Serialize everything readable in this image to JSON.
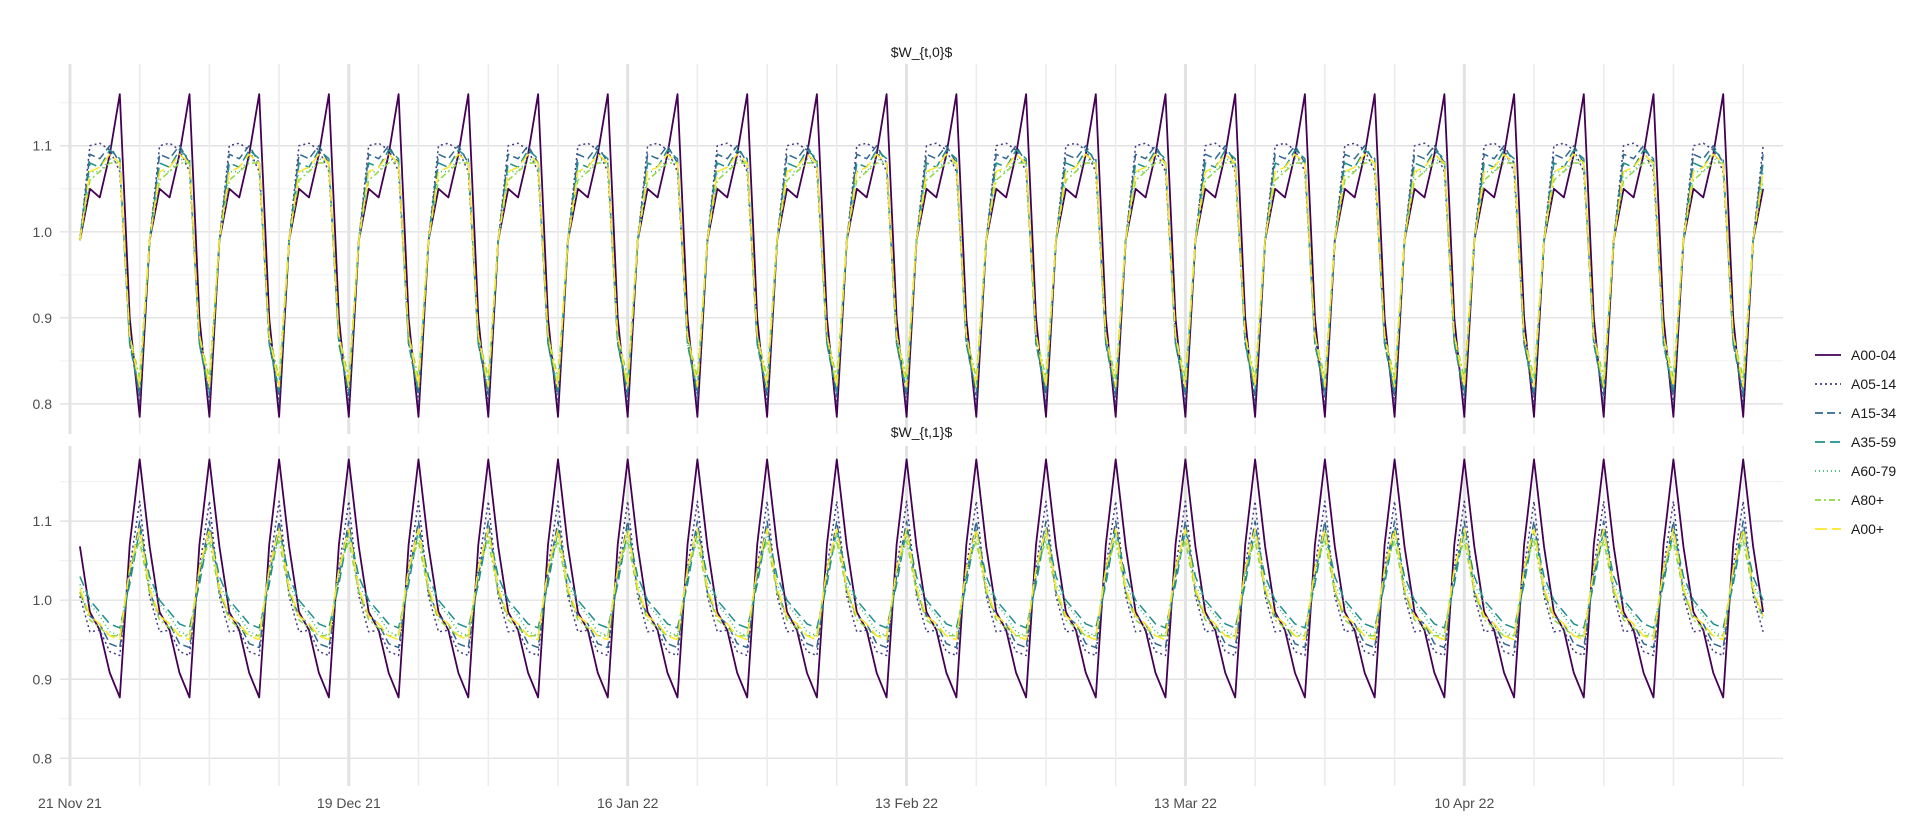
{
  "chart_data": {
    "type": "line",
    "x_axis": {
      "type": "date",
      "tick_labels": [
        "21 Nov 21",
        "19 Dec 21",
        "16 Jan 22",
        "13 Feb 22",
        "13 Mar 22",
        "10 Apr 22"
      ],
      "tick_dates": [
        "2021-11-21",
        "2021-12-19",
        "2022-01-16",
        "2022-02-13",
        "2022-03-13",
        "2022-04-10"
      ],
      "range": [
        "2021-11-20",
        "2022-05-12"
      ]
    },
    "y_axis": {
      "ticks": [
        0.8,
        0.9,
        1.0,
        1.1
      ],
      "range": [
        0.765,
        1.195
      ]
    },
    "grid": true,
    "legend": {
      "placement": "right"
    },
    "data_start": "2021-11-22",
    "data_end": "2022-05-10",
    "period_days": 7,
    "series": [
      {
        "name": "A00-04",
        "color": "#440154",
        "dash": "",
        "panel_0_weekly": [
          0.99,
          1.05,
          1.04,
          1.09,
          1.16,
          0.9,
          0.785
        ],
        "panel_1_weekly": [
          1.068,
          0.985,
          0.962,
          0.908,
          0.877,
          1.07,
          1.178
        ]
      },
      {
        "name": "A05-14",
        "color": "#443A83",
        "dash": "2,3",
        "panel_0_weekly": [
          0.99,
          1.1,
          1.103,
          1.095,
          1.07,
          0.88,
          0.8
        ],
        "panel_1_weekly": [
          1.005,
          0.96,
          0.962,
          0.935,
          0.93,
          1.04,
          1.125
        ]
      },
      {
        "name": "A15-34",
        "color": "#31688E",
        "dash": "8,4",
        "panel_0_weekly": [
          0.99,
          1.09,
          1.085,
          1.1,
          1.08,
          0.87,
          0.81
        ],
        "panel_1_weekly": [
          1.01,
          0.98,
          0.97,
          0.945,
          0.94,
          1.03,
          1.1
        ]
      },
      {
        "name": "A35-59",
        "color": "#21908C",
        "dash": "10,5",
        "panel_0_weekly": [
          0.99,
          1.08,
          1.075,
          1.095,
          1.085,
          0.87,
          0.815
        ],
        "panel_1_weekly": [
          1.03,
          1.0,
          0.985,
          0.97,
          0.965,
          1.02,
          1.09
        ]
      },
      {
        "name": "A60-79",
        "color": "#35B779",
        "dash": "1,3",
        "panel_0_weekly": [
          0.99,
          1.07,
          1.07,
          1.085,
          1.08,
          0.87,
          0.82
        ],
        "panel_1_weekly": [
          1.02,
          0.995,
          0.98,
          0.96,
          0.955,
          1.03,
          1.085
        ]
      },
      {
        "name": "A80+",
        "color": "#8FD744",
        "dash": "6,3,2,3",
        "panel_0_weekly": [
          0.99,
          1.06,
          1.07,
          1.08,
          1.08,
          0.88,
          0.83
        ],
        "panel_1_weekly": [
          1.01,
          0.975,
          0.965,
          0.955,
          0.955,
          1.04,
          1.075
        ]
      },
      {
        "name": "A00+",
        "color": "#FDE725",
        "dash": "12,5",
        "panel_0_weekly": [
          0.99,
          1.07,
          1.075,
          1.09,
          1.08,
          0.88,
          0.82
        ],
        "panel_1_weekly": [
          1.015,
          0.98,
          0.97,
          0.955,
          0.95,
          1.04,
          1.09
        ]
      }
    ],
    "panels": [
      {
        "title": "$W_{t,0}$"
      },
      {
        "title": "$W_{t,1}$"
      }
    ]
  }
}
